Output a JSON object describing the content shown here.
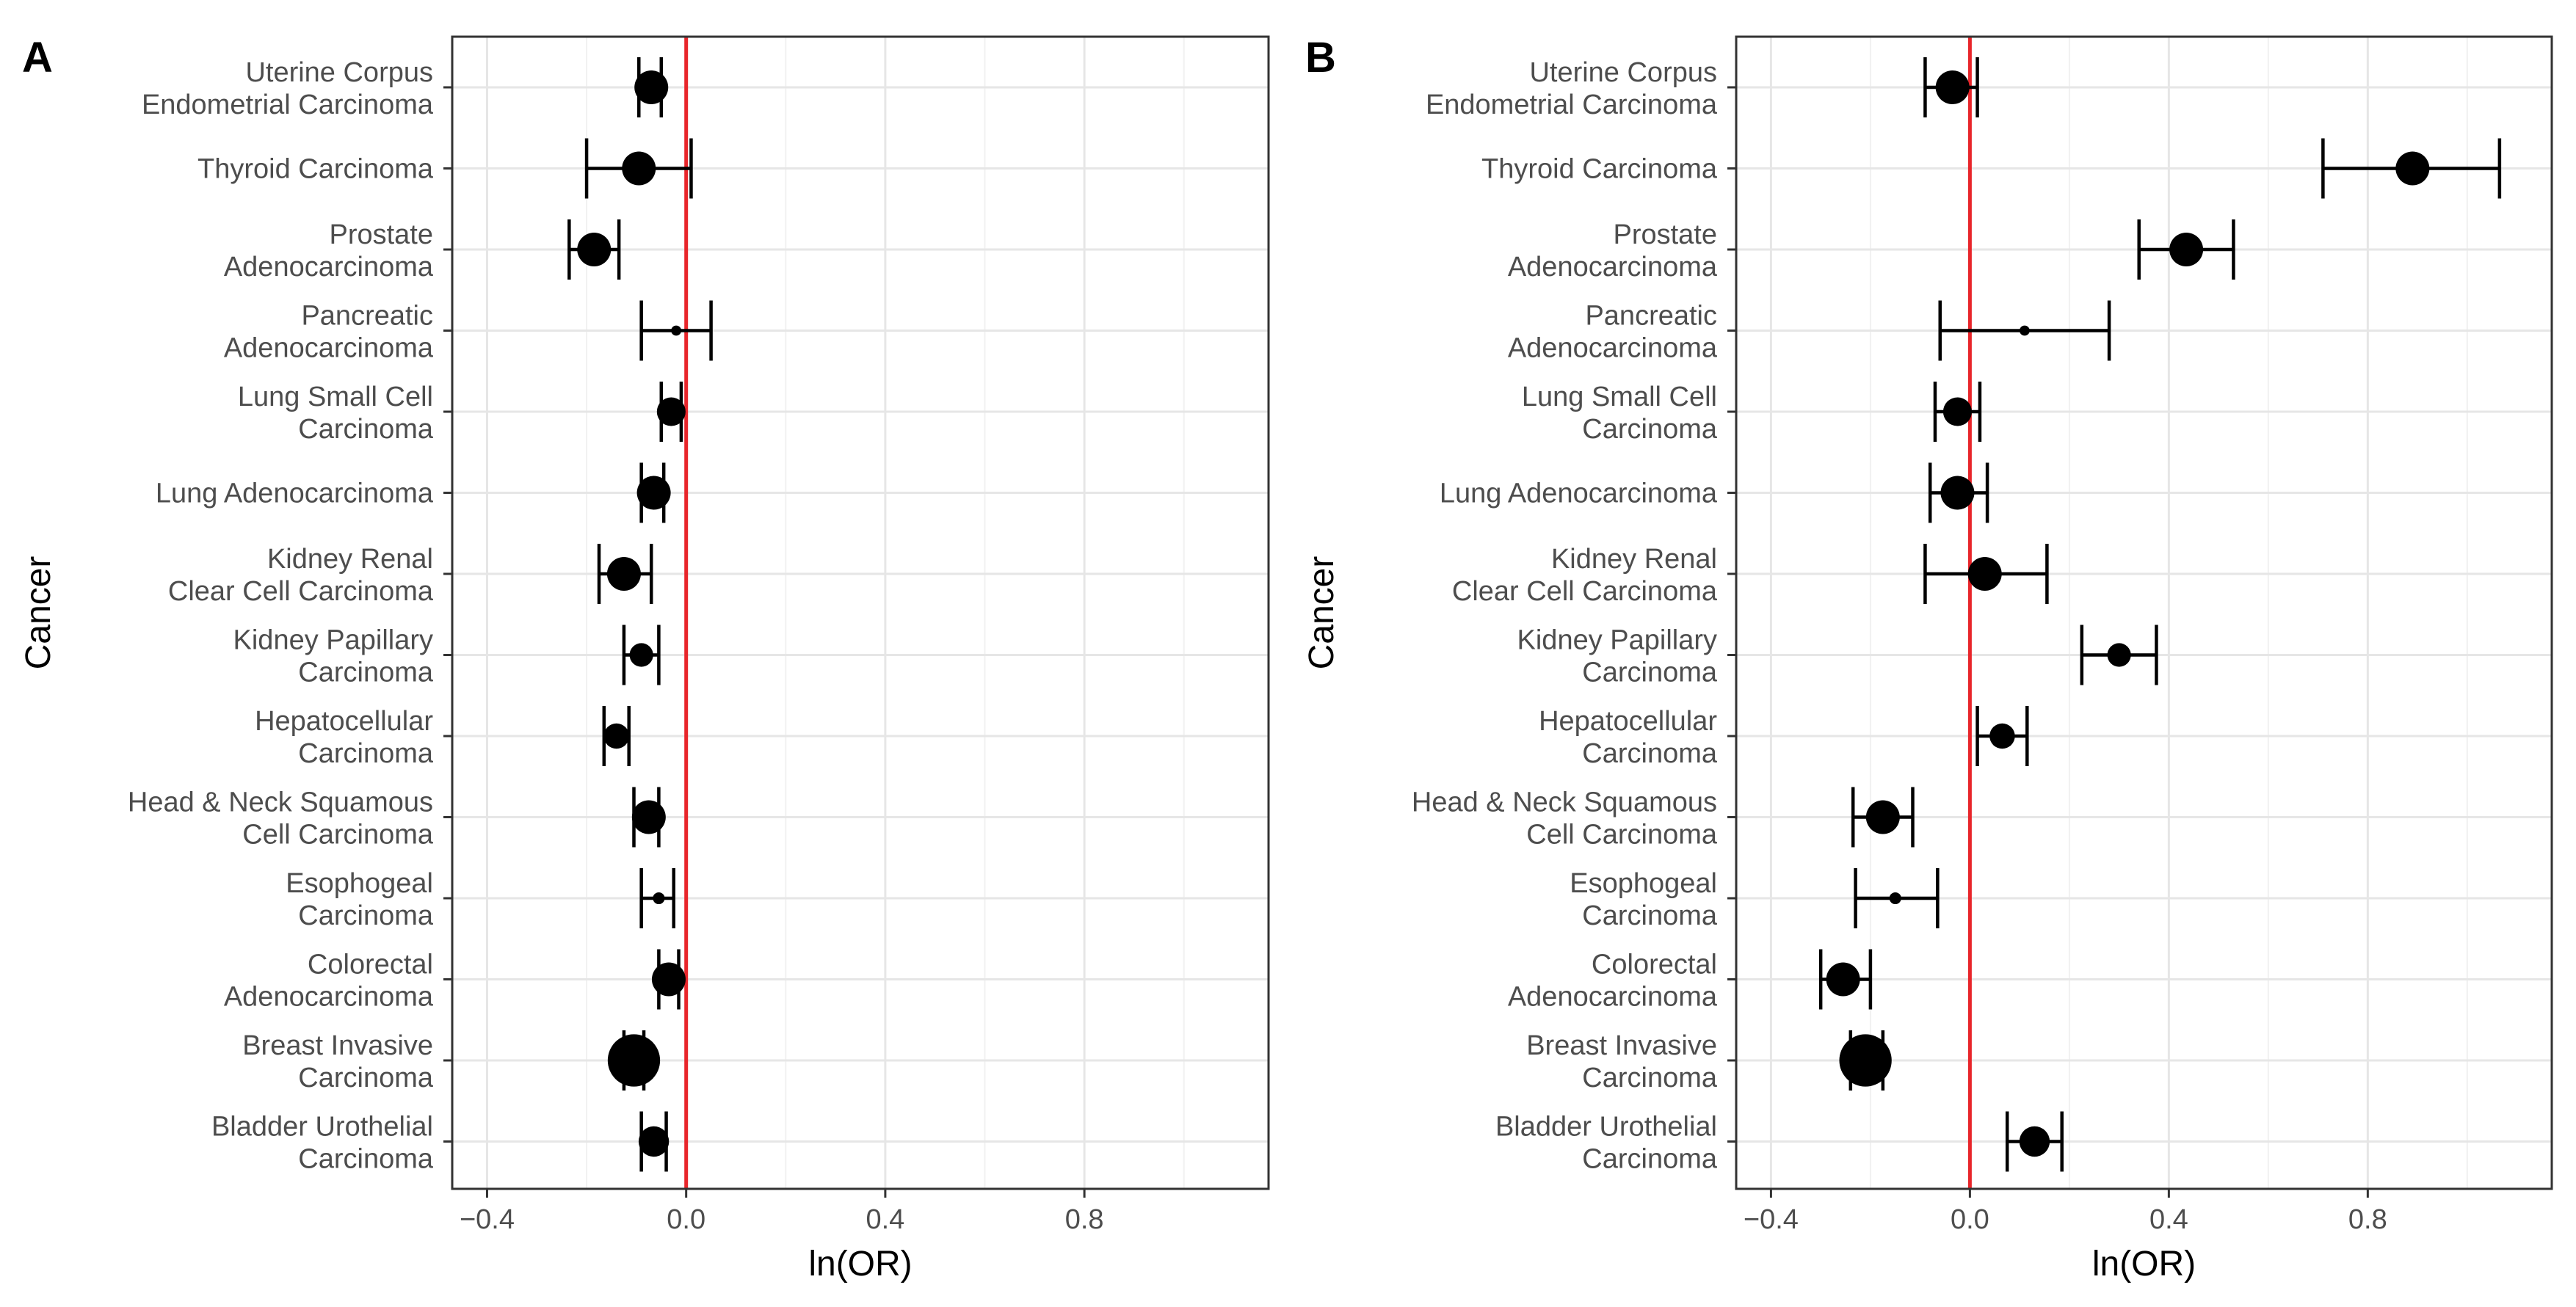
{
  "chart_data": [
    {
      "type": "forest",
      "panel_label": "A",
      "xlabel": "ln(OR)",
      "ylabel": "Cancer",
      "xlim": [
        -0.47,
        1.17
      ],
      "xticks": [
        -0.4,
        0.0,
        0.4,
        0.8
      ],
      "xtick_labels": [
        "−0.4",
        "0.0",
        "0.4",
        "0.8"
      ],
      "reference_line": 0.0,
      "reference_color": "#e8262b",
      "grid": true,
      "categories": [
        [
          "Uterine Corpus",
          "Endometrial Carcinoma"
        ],
        [
          "Thyroid Carcinoma"
        ],
        [
          "Prostate",
          "Adenocarcinoma"
        ],
        [
          "Pancreatic",
          "Adenocarcinoma"
        ],
        [
          "Lung Small Cell",
          "Carcinoma"
        ],
        [
          "Lung Adenocarcinoma"
        ],
        [
          "Kidney Renal",
          "Clear Cell Carcinoma"
        ],
        [
          "Kidney Papillary",
          "Carcinoma"
        ],
        [
          "Hepatocellular",
          "Carcinoma"
        ],
        [
          "Head & Neck Squamous",
          "Cell Carcinoma"
        ],
        [
          "Esophogeal",
          "Carcinoma"
        ],
        [
          "Colorectal",
          "Adenocarcinoma"
        ],
        [
          "Breast Invasive",
          "Carcinoma"
        ],
        [
          "Bladder Urothelial",
          "Carcinoma"
        ]
      ],
      "estimates": [
        -0.07,
        -0.095,
        -0.185,
        -0.02,
        -0.03,
        -0.065,
        -0.125,
        -0.09,
        -0.14,
        -0.075,
        -0.055,
        -0.035,
        -0.105,
        -0.065
      ],
      "ci_low": [
        -0.095,
        -0.2,
        -0.235,
        -0.09,
        -0.05,
        -0.09,
        -0.175,
        -0.125,
        -0.165,
        -0.105,
        -0.09,
        -0.055,
        -0.125,
        -0.09
      ],
      "ci_high": [
        -0.05,
        0.01,
        -0.135,
        0.05,
        -0.01,
        -0.045,
        -0.07,
        -0.055,
        -0.115,
        -0.055,
        -0.025,
        -0.015,
        -0.085,
        -0.04
      ],
      "point_size": [
        1.0,
        1.0,
        1.0,
        0.3,
        0.85,
        1.0,
        1.0,
        0.7,
        0.75,
        1.0,
        0.35,
        1.0,
        1.55,
        0.9
      ]
    },
    {
      "type": "forest",
      "panel_label": "B",
      "xlabel": "ln(OR)",
      "ylabel": "Cancer",
      "xlim": [
        -0.47,
        1.17
      ],
      "xticks": [
        -0.4,
        0.0,
        0.4,
        0.8
      ],
      "xtick_labels": [
        "−0.4",
        "0.0",
        "0.4",
        "0.8"
      ],
      "reference_line": 0.0,
      "reference_color": "#e8262b",
      "grid": true,
      "categories": [
        [
          "Uterine Corpus",
          "Endometrial Carcinoma"
        ],
        [
          "Thyroid Carcinoma"
        ],
        [
          "Prostate",
          "Adenocarcinoma"
        ],
        [
          "Pancreatic",
          "Adenocarcinoma"
        ],
        [
          "Lung Small Cell",
          "Carcinoma"
        ],
        [
          "Lung Adenocarcinoma"
        ],
        [
          "Kidney Renal",
          "Clear Cell Carcinoma"
        ],
        [
          "Kidney Papillary",
          "Carcinoma"
        ],
        [
          "Hepatocellular",
          "Carcinoma"
        ],
        [
          "Head & Neck Squamous",
          "Cell Carcinoma"
        ],
        [
          "Esophogeal",
          "Carcinoma"
        ],
        [
          "Colorectal",
          "Adenocarcinoma"
        ],
        [
          "Breast Invasive",
          "Carcinoma"
        ],
        [
          "Bladder Urothelial",
          "Carcinoma"
        ]
      ],
      "estimates": [
        -0.035,
        0.89,
        0.435,
        0.11,
        -0.025,
        -0.025,
        0.03,
        0.3,
        0.065,
        -0.175,
        -0.15,
        -0.255,
        -0.21,
        0.13
      ],
      "ci_low": [
        -0.09,
        0.71,
        0.34,
        -0.06,
        -0.07,
        -0.08,
        -0.09,
        0.225,
        0.015,
        -0.235,
        -0.23,
        -0.3,
        -0.24,
        0.075
      ],
      "ci_high": [
        0.015,
        1.065,
        0.53,
        0.28,
        0.02,
        0.035,
        0.155,
        0.375,
        0.115,
        -0.115,
        -0.065,
        -0.2,
        -0.175,
        0.185
      ],
      "point_size": [
        1.0,
        1.0,
        1.0,
        0.3,
        0.85,
        1.0,
        1.0,
        0.7,
        0.75,
        1.0,
        0.35,
        1.0,
        1.55,
        0.9
      ]
    }
  ]
}
